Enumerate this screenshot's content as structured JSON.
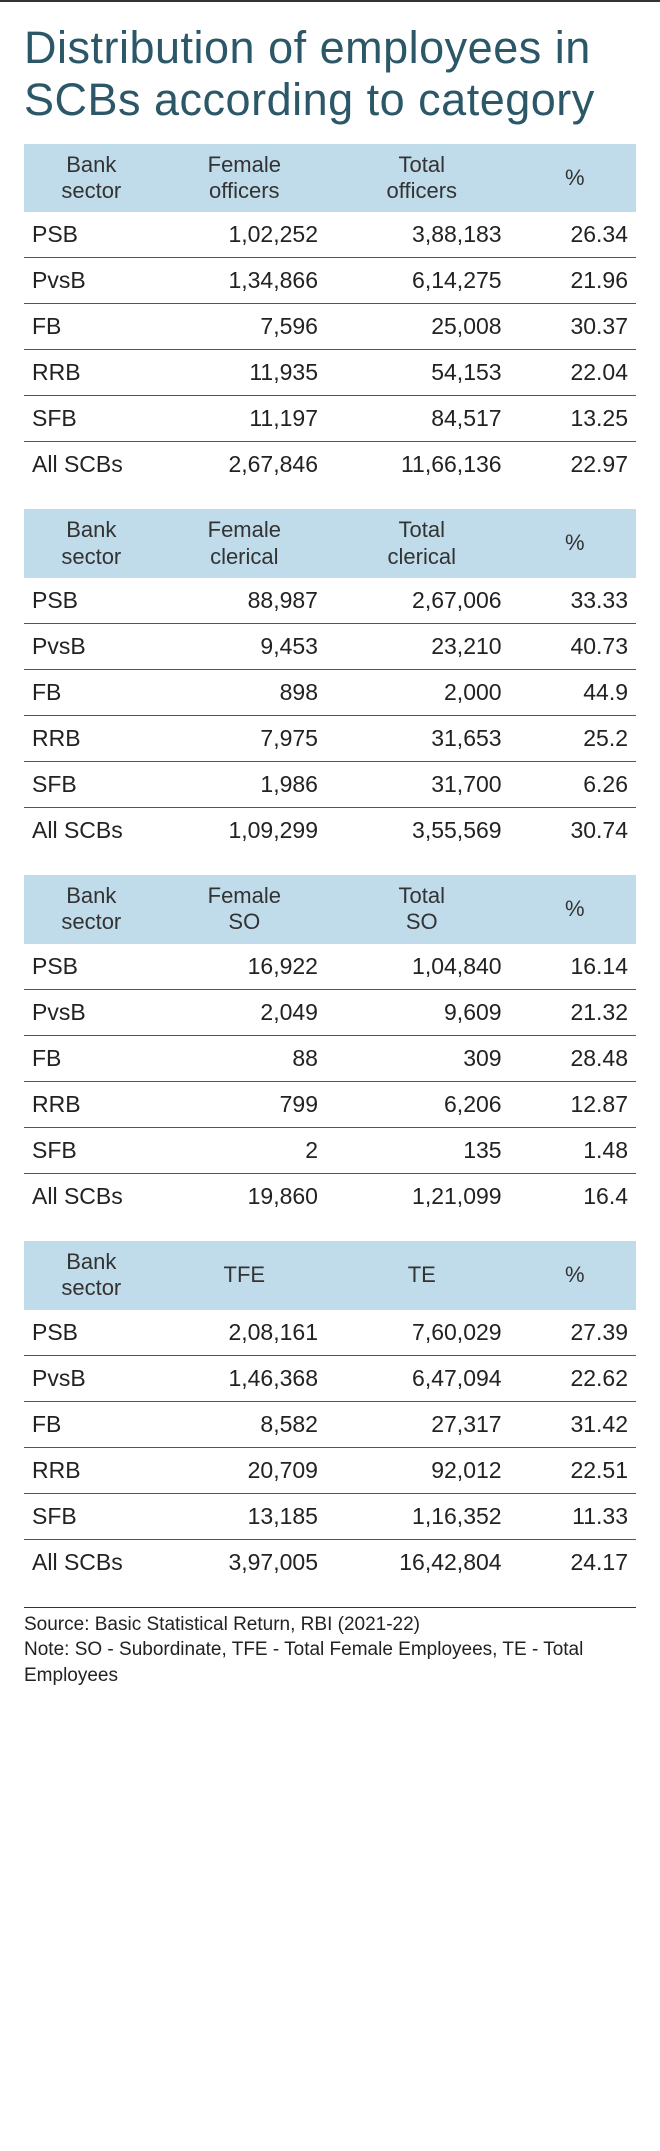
{
  "title": "Distribution of employees in SCBs according to category",
  "colors": {
    "header_bg": "#c0dceb",
    "title_color": "#2b5768",
    "text": "#222222",
    "rule": "#555555",
    "background": "#ffffff"
  },
  "typography": {
    "title_fontsize": 45,
    "title_weight": 300,
    "header_fontsize": 22,
    "cell_fontsize": 23,
    "source_fontsize": 19
  },
  "tables": [
    {
      "headers": [
        "Bank sector",
        "Female officers",
        "Total officers",
        "%"
      ],
      "rows": [
        [
          "PSB",
          "1,02,252",
          "3,88,183",
          "26.34"
        ],
        [
          "PvsB",
          "1,34,866",
          "6,14,275",
          "21.96"
        ],
        [
          "FB",
          "7,596",
          "25,008",
          "30.37"
        ],
        [
          "RRB",
          "11,935",
          "54,153",
          "22.04"
        ],
        [
          "SFB",
          "11,197",
          "84,517",
          "13.25"
        ],
        [
          "All SCBs",
          "2,67,846",
          "11,66,136",
          "22.97"
        ]
      ]
    },
    {
      "headers": [
        "Bank sector",
        "Female clerical",
        "Total clerical",
        "%"
      ],
      "rows": [
        [
          "PSB",
          "88,987",
          "2,67,006",
          "33.33"
        ],
        [
          "PvsB",
          "9,453",
          "23,210",
          "40.73"
        ],
        [
          "FB",
          "898",
          "2,000",
          "44.9"
        ],
        [
          "RRB",
          "7,975",
          "31,653",
          "25.2"
        ],
        [
          "SFB",
          "1,986",
          "31,700",
          "6.26"
        ],
        [
          "All SCBs",
          "1,09,299",
          "3,55,569",
          "30.74"
        ]
      ]
    },
    {
      "headers": [
        "Bank sector",
        "Female SO",
        "Total SO",
        "%"
      ],
      "rows": [
        [
          "PSB",
          "16,922",
          "1,04,840",
          "16.14"
        ],
        [
          "PvsB",
          "2,049",
          "9,609",
          "21.32"
        ],
        [
          "FB",
          "88",
          "309",
          "28.48"
        ],
        [
          "RRB",
          "799",
          "6,206",
          "12.87"
        ],
        [
          "SFB",
          "2",
          "135",
          "1.48"
        ],
        [
          "All SCBs",
          "19,860",
          "1,21,099",
          "16.4"
        ]
      ]
    },
    {
      "headers": [
        "Bank sector",
        "TFE",
        "TE",
        "%"
      ],
      "rows": [
        [
          "PSB",
          "2,08,161",
          "7,60,029",
          "27.39"
        ],
        [
          "PvsB",
          "1,46,368",
          "6,47,094",
          "22.62"
        ],
        [
          "FB",
          "8,582",
          "27,317",
          "31.42"
        ],
        [
          "RRB",
          "20,709",
          "92,012",
          "22.51"
        ],
        [
          "SFB",
          "13,185",
          "1,16,352",
          "11.33"
        ],
        [
          "All SCBs",
          "3,97,005",
          "16,42,804",
          "24.17"
        ]
      ]
    }
  ],
  "source_line1": "Source: Basic Statistical Return, RBI (2021-22)",
  "source_line2": "Note: SO - Subordinate, TFE - Total Female Employees, TE - Total Employees"
}
